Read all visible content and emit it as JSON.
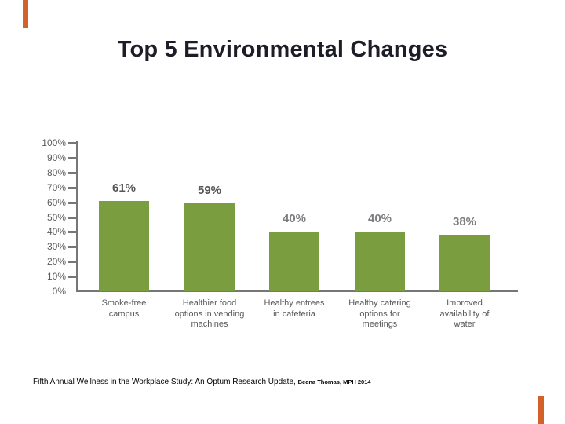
{
  "slide": {
    "title": "Top 5 Environmental Changes",
    "accent_color": "#d2622a",
    "footer": {
      "citation_main": "Fifth Annual Wellness in the Workplace Study: An Optum Research Update, ",
      "citation_sub": "Beena Thomas, MPH 2014"
    }
  },
  "chart_data": {
    "type": "bar",
    "title": "Top 5 Environmental Changes",
    "categories": [
      "Smoke-free campus",
      "Healthier food options in vending machines",
      "Healthy entrees in cafeteria",
      "Healthy catering options for meetings",
      "Improved availability of water"
    ],
    "category_lines": [
      [
        "Smoke-free",
        "campus"
      ],
      [
        "Healthier food",
        "options in vending",
        "machines"
      ],
      [
        "Healthy entrees",
        "in cafeteria"
      ],
      [
        "Healthy catering",
        "options for",
        "meetings"
      ],
      [
        "Improved",
        "availability of",
        "water"
      ]
    ],
    "values": [
      61,
      59,
      40,
      40,
      38
    ],
    "data_labels": [
      "61%",
      "59%",
      "40%",
      "40%",
      "38%"
    ],
    "label_tones": [
      "dark",
      "dark",
      "light",
      "light",
      "light"
    ],
    "xlabel": "",
    "ylabel": "",
    "ylim": [
      0,
      100
    ],
    "ytick_step": 10,
    "ytick_labels": [
      "100%",
      "90%",
      "80%",
      "70%",
      "60%",
      "50%",
      "40%",
      "30%",
      "20%",
      "10%",
      "0%"
    ],
    "grid": false,
    "legend": false,
    "bar_color": "#7a9d3f",
    "axis_color": "#767676"
  }
}
